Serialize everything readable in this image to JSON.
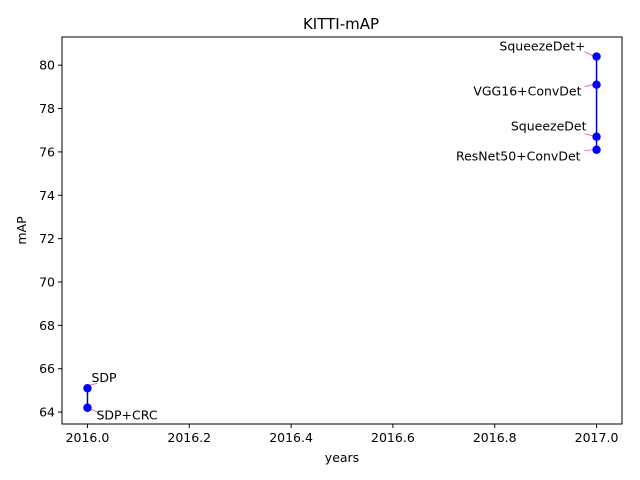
{
  "chart_data": {
    "type": "line",
    "title": "KITTI-mAP",
    "xlabel": "years",
    "ylabel": "mAP",
    "xlim": [
      2015.95,
      2017.05
    ],
    "ylim": [
      63.45,
      81.3
    ],
    "xticks": [
      2016.0,
      2016.2,
      2016.4,
      2016.6,
      2016.8,
      2017.0
    ],
    "xtick_labels": [
      "2016.0",
      "2016.2",
      "2016.4",
      "2016.6",
      "2016.8",
      "2017.0"
    ],
    "yticks": [
      64,
      66,
      68,
      70,
      72,
      74,
      76,
      78,
      80
    ],
    "ytick_labels": [
      "64",
      "66",
      "68",
      "70",
      "72",
      "74",
      "76",
      "78",
      "80"
    ],
    "grid": false,
    "series": [
      {
        "color": "#0000cc",
        "marker_color": "#0000ff",
        "points": [
          {
            "x": 2016.0,
            "y": 64.2,
            "label": "SDP+CRC"
          },
          {
            "x": 2016.0,
            "y": 65.1,
            "label": "SDP"
          }
        ]
      },
      {
        "color": "#0000cc",
        "marker_color": "#0000ff",
        "points": [
          {
            "x": 2017.0,
            "y": 76.1,
            "label": "ResNet50+ConvDet"
          },
          {
            "x": 2017.0,
            "y": 76.7,
            "label": "SqueezeDet"
          },
          {
            "x": 2017.0,
            "y": 79.1,
            "label": "VGG16+ConvDet"
          },
          {
            "x": 2017.0,
            "y": 80.4,
            "label": "SqueezeDet+"
          }
        ]
      }
    ]
  }
}
